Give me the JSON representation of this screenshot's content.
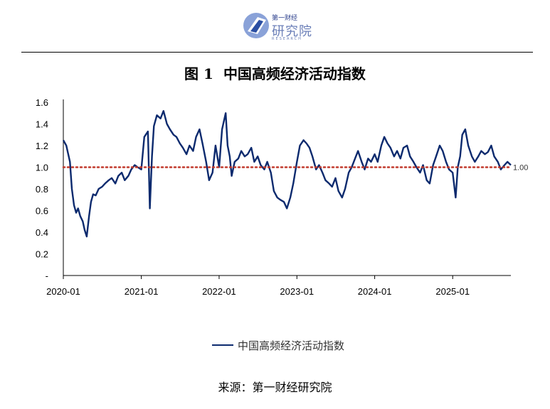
{
  "header": {
    "logo_top": "第一财经",
    "logo_main": "研究院",
    "logo_sub": "RESEARCH"
  },
  "figure": {
    "number": "图 1",
    "title": "中国高频经济活动指数",
    "source": "来源：第一财经研究院"
  },
  "colors": {
    "series": "#0c2a6e",
    "reference": "#c0392b",
    "axis": "#000000"
  },
  "chart_data": {
    "type": "line",
    "title": "中国高频经济活动指数",
    "xlabel": "",
    "ylabel": "",
    "x_ticks": [
      "2020-01",
      "2021-01",
      "2022-01",
      "2023-01",
      "2024-01",
      "2025-01"
    ],
    "y_ticks": [
      "-",
      "0.2",
      "0.4",
      "0.6",
      "0.8",
      "1.0",
      "1.2",
      "1.4",
      "1.6"
    ],
    "ylim": [
      0,
      1.6
    ],
    "xlim": [
      "2020-01",
      "2025-10"
    ],
    "grid": false,
    "legend": "bottom",
    "reference_line": {
      "y": 1.0,
      "label": "1.00",
      "style": "dotted"
    },
    "series": [
      {
        "name": "中国高频经济活动指数",
        "x": [
          "2020-01-01",
          "2020-01-15",
          "2020-02-01",
          "2020-02-10",
          "2020-02-20",
          "2020-03-01",
          "2020-03-10",
          "2020-03-20",
          "2020-04-01",
          "2020-04-10",
          "2020-04-20",
          "2020-05-01",
          "2020-05-10",
          "2020-05-20",
          "2020-06-01",
          "2020-06-15",
          "2020-07-01",
          "2020-07-15",
          "2020-08-01",
          "2020-08-15",
          "2020-09-01",
          "2020-09-15",
          "2020-10-01",
          "2020-10-15",
          "2020-11-01",
          "2020-11-15",
          "2020-12-01",
          "2020-12-15",
          "2021-01-01",
          "2021-01-15",
          "2021-02-01",
          "2021-02-10",
          "2021-02-20",
          "2021-03-01",
          "2021-03-15",
          "2021-04-01",
          "2021-04-15",
          "2021-05-01",
          "2021-05-15",
          "2021-06-01",
          "2021-06-15",
          "2021-07-01",
          "2021-07-15",
          "2021-08-01",
          "2021-08-15",
          "2021-09-01",
          "2021-09-15",
          "2021-10-01",
          "2021-10-15",
          "2021-11-01",
          "2021-11-15",
          "2021-12-01",
          "2021-12-15",
          "2022-01-01",
          "2022-01-15",
          "2022-02-01",
          "2022-02-10",
          "2022-02-20",
          "2022-03-01",
          "2022-03-15",
          "2022-04-01",
          "2022-04-15",
          "2022-05-01",
          "2022-05-15",
          "2022-06-01",
          "2022-06-15",
          "2022-07-01",
          "2022-07-15",
          "2022-08-01",
          "2022-08-15",
          "2022-09-01",
          "2022-09-15",
          "2022-10-01",
          "2022-10-15",
          "2022-11-01",
          "2022-11-15",
          "2022-12-01",
          "2022-12-15",
          "2023-01-01",
          "2023-01-15",
          "2023-02-01",
          "2023-02-15",
          "2023-03-01",
          "2023-03-15",
          "2023-04-01",
          "2023-04-15",
          "2023-05-01",
          "2023-05-15",
          "2023-06-01",
          "2023-06-15",
          "2023-07-01",
          "2023-07-15",
          "2023-08-01",
          "2023-08-15",
          "2023-09-01",
          "2023-09-15",
          "2023-10-01",
          "2023-10-15",
          "2023-11-01",
          "2023-11-15",
          "2023-12-01",
          "2023-12-15",
          "2024-01-01",
          "2024-01-15",
          "2024-02-01",
          "2024-02-15",
          "2024-03-01",
          "2024-03-15",
          "2024-04-01",
          "2024-04-15",
          "2024-05-01",
          "2024-05-15",
          "2024-06-01",
          "2024-06-15",
          "2024-07-01",
          "2024-07-15",
          "2024-08-01",
          "2024-08-15",
          "2024-09-01",
          "2024-09-15",
          "2024-10-01",
          "2024-10-15",
          "2024-11-01",
          "2024-11-15",
          "2024-12-01",
          "2024-12-15",
          "2025-01-01",
          "2025-01-15",
          "2025-01-25",
          "2025-02-05",
          "2025-02-15",
          "2025-03-01",
          "2025-03-15",
          "2025-04-01",
          "2025-04-15",
          "2025-05-01",
          "2025-05-15",
          "2025-06-01",
          "2025-06-15",
          "2025-07-01",
          "2025-07-15",
          "2025-08-01",
          "2025-08-15",
          "2025-09-01",
          "2025-09-15",
          "2025-10-01"
        ],
        "values": [
          1.25,
          1.2,
          1.05,
          0.8,
          0.65,
          0.58,
          0.62,
          0.55,
          0.5,
          0.42,
          0.36,
          0.55,
          0.68,
          0.75,
          0.74,
          0.8,
          0.82,
          0.85,
          0.88,
          0.9,
          0.85,
          0.92,
          0.95,
          0.88,
          0.92,
          0.98,
          1.02,
          1.0,
          0.98,
          1.28,
          1.33,
          0.62,
          1.1,
          1.38,
          1.48,
          1.45,
          1.52,
          1.4,
          1.35,
          1.3,
          1.28,
          1.22,
          1.18,
          1.12,
          1.2,
          1.15,
          1.28,
          1.35,
          1.22,
          1.05,
          0.88,
          0.95,
          1.2,
          1.0,
          1.35,
          1.5,
          1.2,
          1.1,
          0.92,
          1.05,
          1.08,
          1.15,
          1.1,
          1.12,
          1.18,
          1.05,
          1.1,
          1.02,
          0.98,
          1.05,
          0.95,
          0.78,
          0.72,
          0.7,
          0.68,
          0.62,
          0.72,
          0.85,
          1.05,
          1.2,
          1.25,
          1.22,
          1.18,
          1.1,
          0.98,
          1.02,
          0.95,
          0.88,
          0.85,
          0.82,
          0.9,
          0.78,
          0.72,
          0.8,
          0.95,
          1.0,
          1.08,
          1.15,
          1.05,
          0.98,
          1.08,
          1.05,
          1.12,
          1.05,
          1.2,
          1.28,
          1.22,
          1.18,
          1.1,
          1.15,
          1.08,
          1.18,
          1.2,
          1.1,
          1.05,
          1.0,
          0.95,
          1.02,
          0.88,
          0.85,
          1.02,
          1.1,
          1.2,
          1.15,
          1.05,
          0.98,
          0.95,
          0.72,
          1.0,
          1.1,
          1.3,
          1.35,
          1.2,
          1.1,
          1.05,
          1.1,
          1.15,
          1.12,
          1.14,
          1.2,
          1.1,
          1.05,
          0.98,
          1.02,
          1.05,
          1.02
        ]
      }
    ]
  }
}
